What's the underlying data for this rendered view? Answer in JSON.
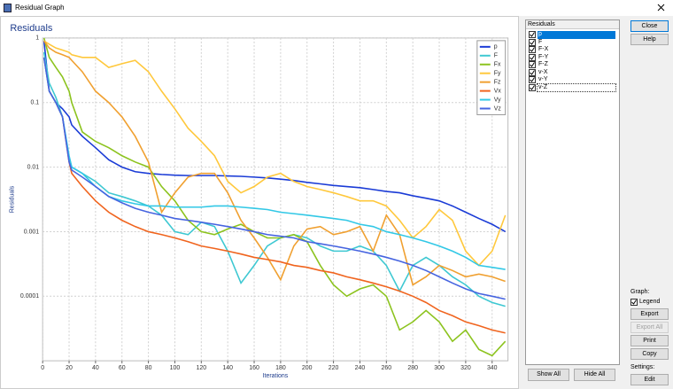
{
  "window": {
    "title": "Residual Graph"
  },
  "chart_data": {
    "type": "line",
    "title": "Residuals",
    "x_label": "Iterations",
    "y_label": "Residuals",
    "x": [
      1,
      5,
      10,
      15,
      20,
      22,
      30,
      40,
      50,
      60,
      70,
      80,
      90,
      100,
      110,
      120,
      130,
      140,
      150,
      160,
      170,
      180,
      190,
      200,
      210,
      220,
      230,
      240,
      250,
      260,
      270,
      280,
      290,
      300,
      310,
      320,
      330,
      340,
      350
    ],
    "series": [
      {
        "name": "p",
        "color": "#1a3bd6",
        "values": [
          0.9,
          0.15,
          0.1,
          0.08,
          0.06,
          0.045,
          0.03,
          0.02,
          0.013,
          0.01,
          0.0085,
          0.008,
          0.0077,
          0.0075,
          0.0074,
          0.0074,
          0.0074,
          0.0073,
          0.0072,
          0.007,
          0.0068,
          0.0065,
          0.0062,
          0.0058,
          0.0055,
          0.0052,
          0.005,
          0.0048,
          0.0045,
          0.0042,
          0.004,
          0.0036,
          0.0033,
          0.003,
          0.0025,
          0.002,
          0.0016,
          0.0013,
          0.001
        ]
      },
      {
        "name": "F",
        "color": "#3ec8d2",
        "values": [
          0.6,
          0.2,
          0.12,
          0.06,
          0.014,
          0.01,
          0.008,
          0.006,
          0.004,
          0.0035,
          0.003,
          0.0025,
          0.0018,
          0.001,
          0.0009,
          0.0014,
          0.0012,
          0.0005,
          0.00016,
          0.0003,
          0.0006,
          0.0008,
          0.0009,
          0.0008,
          0.0006,
          0.0005,
          0.0005,
          0.0006,
          0.0005,
          0.0003,
          0.00012,
          0.0003,
          0.0004,
          0.0003,
          0.0002,
          0.00015,
          0.0001,
          8e-05,
          7e-05
        ]
      },
      {
        "name": "Fx",
        "color": "#8cc31e",
        "values": [
          1,
          0.5,
          0.35,
          0.25,
          0.15,
          0.1,
          0.035,
          0.025,
          0.02,
          0.015,
          0.012,
          0.01,
          0.005,
          0.003,
          0.0015,
          0.001,
          0.0009,
          0.0011,
          0.0013,
          0.001,
          0.0008,
          0.0008,
          0.0009,
          0.0007,
          0.0003,
          0.00015,
          0.0001,
          0.00013,
          0.00015,
          0.0001,
          3e-05,
          4e-05,
          6e-05,
          4e-05,
          2e-05,
          3e-05,
          1.5e-05,
          1.2e-05,
          2e-05
        ]
      },
      {
        "name": "Fy",
        "color": "#ffc83c",
        "values": [
          0.9,
          0.8,
          0.7,
          0.65,
          0.6,
          0.55,
          0.5,
          0.5,
          0.35,
          0.4,
          0.45,
          0.3,
          0.15,
          0.08,
          0.04,
          0.025,
          0.015,
          0.006,
          0.004,
          0.005,
          0.007,
          0.008,
          0.006,
          0.005,
          0.0045,
          0.004,
          0.0035,
          0.003,
          0.003,
          0.0025,
          0.0015,
          0.0008,
          0.0012,
          0.0022,
          0.0015,
          0.0005,
          0.0003,
          0.0005,
          0.0018
        ]
      },
      {
        "name": "Fz",
        "color": "#f0a030",
        "values": [
          0.9,
          0.7,
          0.6,
          0.55,
          0.5,
          0.45,
          0.3,
          0.15,
          0.1,
          0.06,
          0.03,
          0.012,
          0.002,
          0.004,
          0.007,
          0.008,
          0.008,
          0.004,
          0.0015,
          0.0008,
          0.0004,
          0.00018,
          0.0006,
          0.0011,
          0.0012,
          0.0009,
          0.001,
          0.0012,
          0.0005,
          0.0018,
          0.0009,
          0.00015,
          0.0002,
          0.0003,
          0.00025,
          0.0002,
          0.00022,
          0.0002,
          0.00017
        ]
      },
      {
        "name": "Vx",
        "color": "#f0641e",
        "values": [
          0.5,
          0.15,
          0.1,
          0.06,
          0.012,
          0.008,
          0.005,
          0.003,
          0.002,
          0.0015,
          0.0012,
          0.001,
          0.0009,
          0.0008,
          0.0007,
          0.0006,
          0.00055,
          0.0005,
          0.00045,
          0.0004,
          0.00037,
          0.00034,
          0.0003,
          0.00028,
          0.00025,
          0.00023,
          0.0002,
          0.00018,
          0.00016,
          0.00014,
          0.00012,
          0.0001,
          8e-05,
          6e-05,
          5e-05,
          4e-05,
          3.5e-05,
          3e-05,
          2.7e-05
        ]
      },
      {
        "name": "Vy",
        "color": "#32c8e6",
        "values": [
          0.5,
          0.15,
          0.1,
          0.06,
          0.015,
          0.01,
          0.008,
          0.005,
          0.0035,
          0.003,
          0.0027,
          0.0025,
          0.0025,
          0.0024,
          0.0024,
          0.0024,
          0.0025,
          0.0025,
          0.0024,
          0.0023,
          0.0022,
          0.002,
          0.0019,
          0.0018,
          0.0017,
          0.0016,
          0.0015,
          0.0013,
          0.0012,
          0.001,
          0.0009,
          0.0008,
          0.0007,
          0.0006,
          0.0005,
          0.0004,
          0.0003,
          0.00028,
          0.00026
        ]
      },
      {
        "name": "Vz",
        "color": "#4664e0",
        "values": [
          0.5,
          0.15,
          0.1,
          0.06,
          0.012,
          0.009,
          0.007,
          0.005,
          0.0035,
          0.0028,
          0.0023,
          0.002,
          0.0018,
          0.0016,
          0.0015,
          0.0014,
          0.0013,
          0.0012,
          0.0011,
          0.001,
          0.0009,
          0.00085,
          0.0008,
          0.0007,
          0.00065,
          0.0006,
          0.00055,
          0.0005,
          0.00045,
          0.0004,
          0.00035,
          0.0003,
          0.00025,
          0.0002,
          0.00016,
          0.00013,
          0.00011,
          0.0001,
          9e-05
        ]
      }
    ],
    "xlim": [
      0,
      352
    ],
    "xticks": [
      0,
      20,
      40,
      60,
      80,
      100,
      120,
      140,
      160,
      180,
      200,
      220,
      240,
      260,
      280,
      300,
      320,
      340
    ],
    "ylim": [
      1e-05,
      1
    ],
    "yticks": [
      1,
      0.1,
      0.01,
      0.001,
      0.0001
    ],
    "y_scale": "log",
    "grid": true,
    "legend": "top-right"
  },
  "residuals_list": {
    "title": "Residuals",
    "items": [
      {
        "label": "p",
        "checked": true,
        "selected": true
      },
      {
        "label": "F",
        "checked": true,
        "selected": false
      },
      {
        "label": "F-X",
        "checked": true,
        "selected": false
      },
      {
        "label": "F-Y",
        "checked": true,
        "selected": false
      },
      {
        "label": "F-Z",
        "checked": true,
        "selected": false
      },
      {
        "label": "v-X",
        "checked": true,
        "selected": false
      },
      {
        "label": "v-Y",
        "checked": true,
        "selected": false
      },
      {
        "label": "v-Z",
        "checked": true,
        "selected": false
      }
    ]
  },
  "list_buttons": [
    "Show All",
    "Hide All"
  ],
  "side_buttons": [
    "Close",
    "Help"
  ],
  "graph_panel": {
    "label": "Graph:",
    "legend_checkbox": {
      "label": "Legend",
      "checked": true
    },
    "buttons": [
      {
        "label": "Export",
        "enabled": true
      },
      {
        "label": "Export All",
        "enabled": false
      },
      {
        "label": "Print",
        "enabled": true
      },
      {
        "label": "Copy",
        "enabled": true
      }
    ],
    "settings_label": "Settings:",
    "settings_button": "Edit"
  }
}
